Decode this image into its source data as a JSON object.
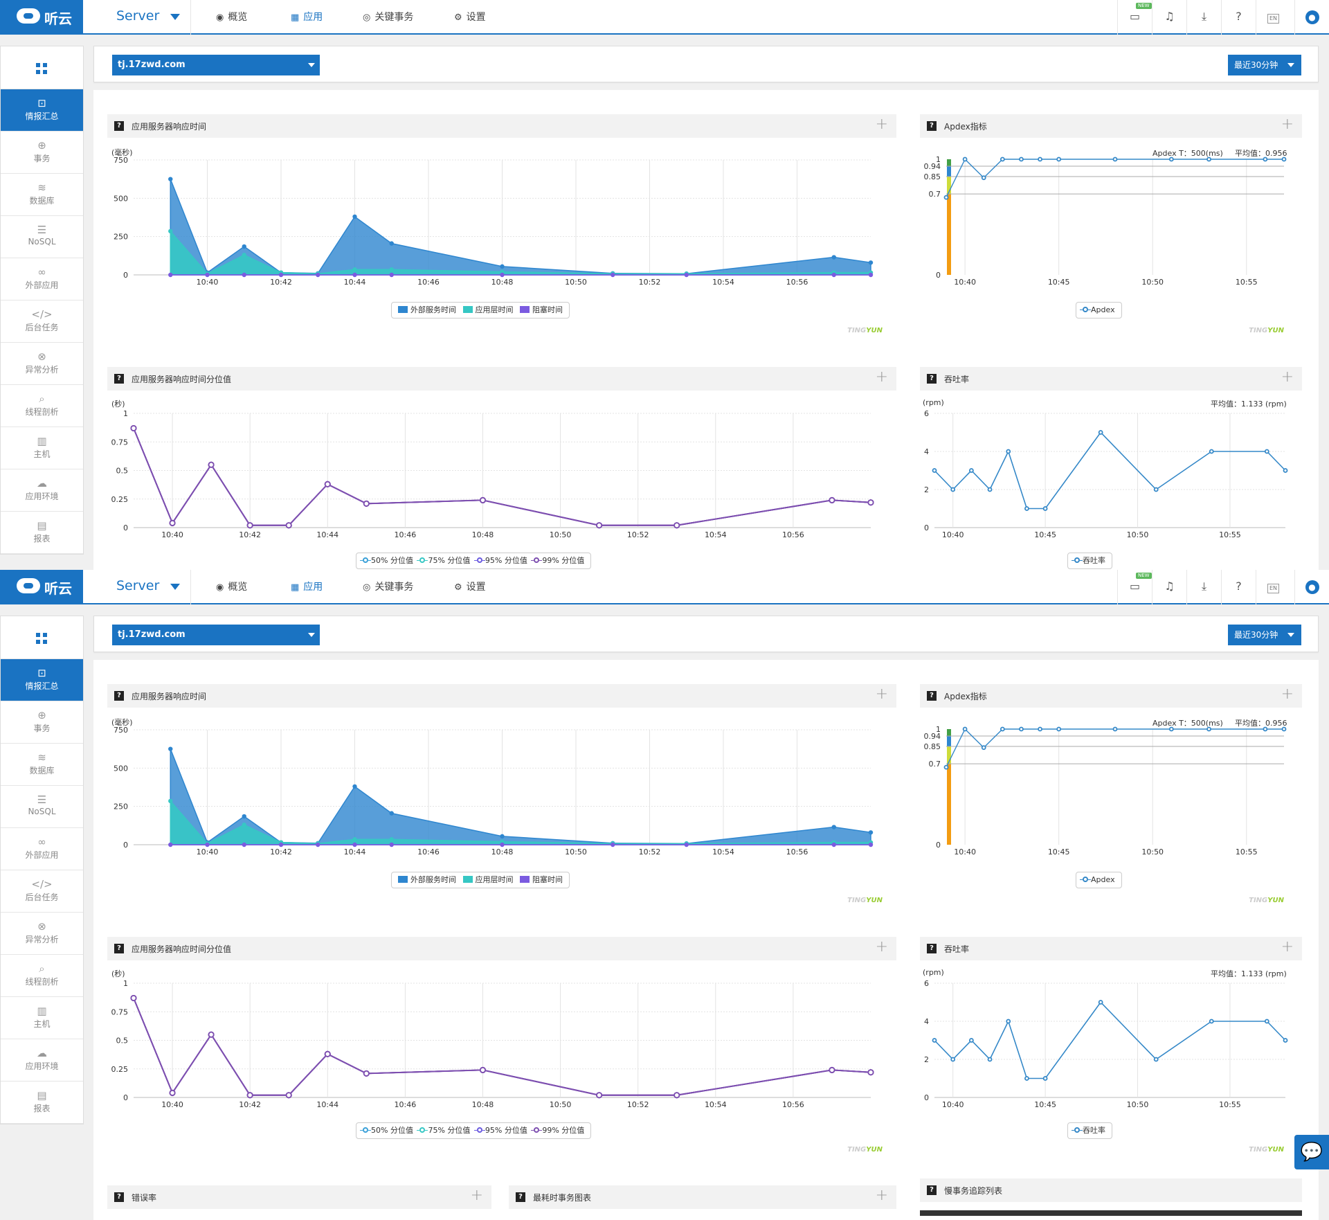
{
  "logo": {
    "text": "听云"
  },
  "header": {
    "app_name": "Server",
    "nav": [
      {
        "label": "概览",
        "icon": "eye-icon",
        "active": false
      },
      {
        "label": "应用",
        "icon": "apps-icon",
        "active": true
      },
      {
        "label": "关键事务",
        "icon": "target-icon",
        "active": false
      },
      {
        "label": "设置",
        "icon": "gear-icon",
        "active": false
      }
    ],
    "tools": {
      "new_badge": "NEW",
      "lang_badge": "EN"
    }
  },
  "sidebar": {
    "items": [
      {
        "label": "情报汇总",
        "icon": "summary-icon",
        "active": true
      },
      {
        "label": "事务",
        "icon": "globe-icon",
        "active": false
      },
      {
        "label": "数据库",
        "icon": "database-icon",
        "active": false
      },
      {
        "label": "NoSQL",
        "icon": "list-icon",
        "active": false
      },
      {
        "label": "外部应用",
        "icon": "link-icon",
        "active": false
      },
      {
        "label": "后台任务",
        "icon": "code-icon",
        "active": false
      },
      {
        "label": "异常分析",
        "icon": "error-icon",
        "active": false
      },
      {
        "label": "线程剖析",
        "icon": "thread-icon",
        "active": false
      },
      {
        "label": "主机",
        "icon": "server-icon",
        "active": false
      },
      {
        "label": "应用环境",
        "icon": "environment-icon",
        "active": false
      },
      {
        "label": "报表",
        "icon": "report-icon",
        "active": false
      }
    ]
  },
  "filter": {
    "domain": "tj.17zwd.com",
    "time_range": "最近30分钟"
  },
  "colors": {
    "accent": "#1a73c2",
    "external": "#2e86cf",
    "app_layer": "#36c7c4",
    "blocking": "#7b5be0",
    "percentile": "#7d4fb0",
    "throughput": "#3488c8",
    "apdex_green": "#43a047",
    "apdex_blue": "#2e86cf",
    "apdex_yellow": "#cddc39",
    "apdex_orange": "#f39c12"
  },
  "watermark": {
    "a": "TING",
    "b": "YUN"
  },
  "panels": {
    "response_time": {
      "title": "应用服务器响应时间",
      "chart_data": {
        "type": "area",
        "ylabel": "(毫秒)",
        "ylim": [
          0,
          750
        ],
        "yticks": [
          "0",
          "250",
          "500",
          "750"
        ],
        "x": [
          "10:39",
          "10:40",
          "10:41",
          "10:42",
          "10:43",
          "10:44",
          "10:45",
          "10:48",
          "10:51",
          "10:53",
          "10:57",
          "10:58"
        ],
        "xticks": [
          "10:40",
          "10:42",
          "10:44",
          "10:46",
          "10:48",
          "10:50",
          "10:52",
          "10:54",
          "10:56"
        ],
        "series": [
          {
            "name": "外部服务时间",
            "values": [
              625,
              15,
              185,
              15,
              10,
              380,
              205,
              55,
              10,
              8,
              115,
              80
            ]
          },
          {
            "name": "应用层时间",
            "values": [
              285,
              8,
              130,
              15,
              8,
              35,
              35,
              20,
              8,
              8,
              15,
              15
            ]
          },
          {
            "name": "阻塞时间",
            "values": [
              0,
              0,
              0,
              0,
              0,
              0,
              0,
              0,
              0,
              0,
              0,
              0
            ]
          }
        ]
      }
    },
    "apdex": {
      "title": "Apdex指标",
      "apdex_t": "Apdex T：500(ms)",
      "avg": "平均值：0.956",
      "chart_data": {
        "type": "line",
        "ylim": [
          0,
          1
        ],
        "yticks": [
          "0",
          "0.7",
          "0.85",
          "0.94",
          "1"
        ],
        "xticks": [
          "10:40",
          "10:45",
          "10:50",
          "10:55"
        ],
        "x": [
          "10:39",
          "10:40",
          "10:41",
          "10:42",
          "10:43",
          "10:44",
          "10:45",
          "10:48",
          "10:51",
          "10:53",
          "10:56",
          "10:57"
        ],
        "series": [
          {
            "name": "Apdex",
            "values": [
              0.67,
              1,
              0.84,
              1,
              1,
              1,
              1,
              1,
              1,
              1,
              1,
              1
            ]
          }
        ]
      }
    },
    "percentile": {
      "title": "应用服务器响应时间分位值",
      "chart_data": {
        "type": "line",
        "ylabel": "(秒)",
        "ylim": [
          0,
          1
        ],
        "yticks": [
          "0",
          "0.25",
          "0.5",
          "0.75",
          "1"
        ],
        "xticks": [
          "10:40",
          "10:42",
          "10:44",
          "10:46",
          "10:48",
          "10:50",
          "10:52",
          "10:54",
          "10:56"
        ],
        "x": [
          "10:39",
          "10:40",
          "10:41",
          "10:42",
          "10:43",
          "10:44",
          "10:45",
          "10:48",
          "10:51",
          "10:53",
          "10:57",
          "10:58"
        ],
        "series": [
          {
            "name": "50% 分位值",
            "values": [
              0.87,
              0.04,
              0.55,
              0.02,
              0.02,
              0.38,
              0.21,
              0.24,
              0.02,
              0.02,
              0.24,
              0.22
            ]
          },
          {
            "name": "75% 分位值",
            "values": [
              0.87,
              0.04,
              0.55,
              0.02,
              0.02,
              0.38,
              0.21,
              0.24,
              0.02,
              0.02,
              0.24,
              0.22
            ]
          },
          {
            "name": "95% 分位值",
            "values": [
              0.87,
              0.04,
              0.55,
              0.02,
              0.02,
              0.38,
              0.21,
              0.24,
              0.02,
              0.02,
              0.24,
              0.22
            ]
          },
          {
            "name": "99% 分位值",
            "values": [
              0.87,
              0.04,
              0.55,
              0.02,
              0.02,
              0.38,
              0.21,
              0.24,
              0.02,
              0.02,
              0.24,
              0.22
            ]
          }
        ]
      }
    },
    "throughput": {
      "title": "吞吐率",
      "unit": "(rpm)",
      "avg": "平均值：1.133 (rpm)",
      "chart_data": {
        "type": "line",
        "ylim": [
          0,
          6
        ],
        "yticks": [
          "0",
          "2",
          "4",
          "6"
        ],
        "xticks": [
          "10:40",
          "10:45",
          "10:50",
          "10:55"
        ],
        "x": [
          "10:39",
          "10:40",
          "10:41",
          "10:42",
          "10:43",
          "10:44",
          "10:45",
          "10:48",
          "10:51",
          "10:54",
          "10:57",
          "10:58"
        ],
        "series": [
          {
            "name": "吞吐率",
            "values": [
              3,
              2,
              3,
              2,
              4,
              1,
              1,
              5,
              2,
              4,
              4,
              3
            ]
          }
        ]
      }
    },
    "error_rate": {
      "title": "错误率"
    },
    "slow_chart": {
      "title": "最耗时事务图表"
    },
    "slow_trace": {
      "title": "慢事务追踪列表"
    }
  }
}
